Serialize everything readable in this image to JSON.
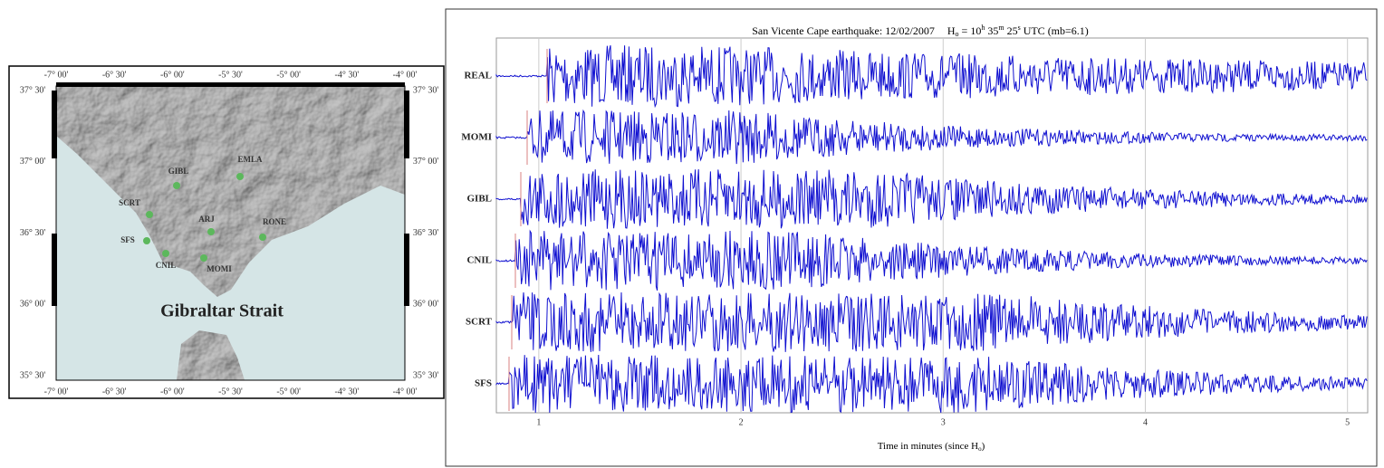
{
  "map": {
    "lon_labels": [
      "-7° 00'",
      "-6° 30'",
      "-6° 00'",
      "-5° 30'",
      "-5° 00'",
      "-4° 30'",
      "-4° 00'"
    ],
    "lat_labels": [
      "37° 30'",
      "37° 00'",
      "36° 30'",
      "36° 00'",
      "35° 30'"
    ],
    "stations": [
      {
        "label": "GIBL"
      },
      {
        "label": "EMLA"
      },
      {
        "label": "SCRT"
      },
      {
        "label": "ARJ"
      },
      {
        "label": "RONE"
      },
      {
        "label": "SFS"
      },
      {
        "label": "CNIL"
      },
      {
        "label": "MOMI"
      }
    ],
    "strait_label": "Gibraltar Strait"
  },
  "seismogram": {
    "title": {
      "text": "San Vicente Cape earthquake: 12/02/2007",
      "h": "H",
      "h_sub": "o",
      "eq": "= 10",
      "hr": "h",
      "min": "35",
      "m": "m",
      "sec": "25",
      "s": "s",
      "tail": "UTC (mb=6.1)"
    },
    "traces": [
      "REAL",
      "MOMI",
      "GIBL",
      "CNIL",
      "SCRT",
      "SFS"
    ],
    "xlabel": {
      "text": "Time in minutes (since H",
      "sub": "o",
      "close": ")"
    },
    "xlim": [
      0.79,
      5.1
    ],
    "xticks": [
      1,
      2,
      3,
      4,
      5
    ]
  }
}
